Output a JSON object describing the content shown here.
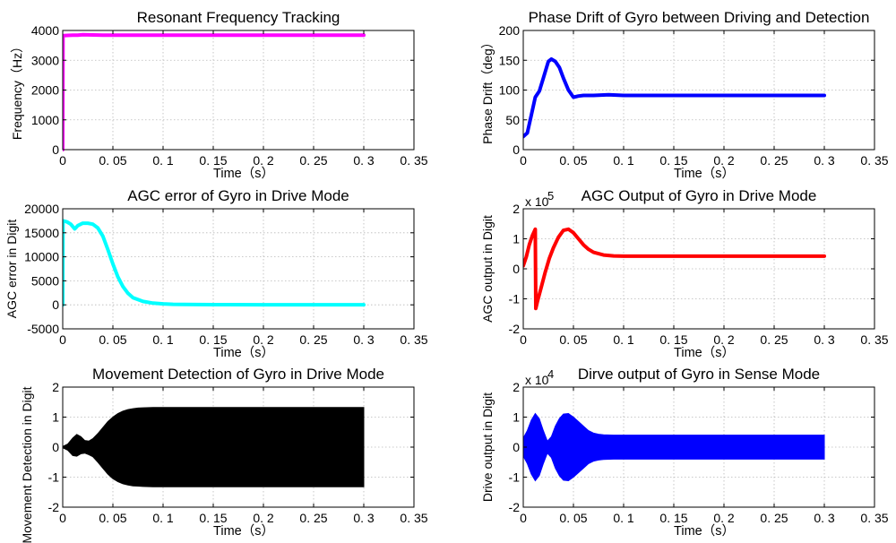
{
  "chart_data": [
    {
      "type": "line",
      "title": "Resonant Frequency Tracking",
      "xlabel": "Time（s）",
      "ylabel": "Frequency（Hz）",
      "xlim": [
        0,
        0.35
      ],
      "ylim": [
        0,
        4000
      ],
      "xticks": [
        0,
        0.05,
        0.1,
        0.15,
        0.2,
        0.25,
        0.3,
        0.35
      ],
      "xtick_labels": [
        "0",
        "0. 05",
        "0. 1",
        "0. 15",
        "0. 2",
        "0. 25",
        "0. 3",
        "0. 35"
      ],
      "yticks": [
        0,
        1000,
        2000,
        3000,
        4000
      ],
      "ytick_labels": [
        "0",
        "1000",
        "2000",
        "3000",
        "4000"
      ],
      "grid": true,
      "color": "#ff00ff",
      "series": [
        {
          "x": [
            0,
            0.0003,
            0.001,
            0.005,
            0.01,
            0.015,
            0.02,
            0.03,
            0.04,
            0.05,
            0.1,
            0.2,
            0.3
          ],
          "y": [
            0,
            3800,
            3830,
            3835,
            3840,
            3845,
            3860,
            3850,
            3840,
            3845,
            3845,
            3845,
            3845
          ]
        }
      ]
    },
    {
      "type": "line",
      "title": "Phase Drift of Gyro between Driving and Detection",
      "xlabel": "Time（s）",
      "ylabel": "Phase Drift（deg）",
      "xlim": [
        0,
        0.35
      ],
      "ylim": [
        0,
        200
      ],
      "xticks": [
        0,
        0.05,
        0.1,
        0.15,
        0.2,
        0.25,
        0.3,
        0.35
      ],
      "xtick_labels": [
        "0",
        "0. 05",
        "0. 1",
        "0. 15",
        "0. 2",
        "0. 25",
        "0. 3",
        "0. 35"
      ],
      "yticks": [
        0,
        50,
        100,
        150,
        200
      ],
      "ytick_labels": [
        "0",
        "50",
        "100",
        "150",
        "200"
      ],
      "grid": true,
      "color": "#0000ff",
      "series": [
        {
          "x": [
            0,
            0.004,
            0.008,
            0.012,
            0.016,
            0.02,
            0.025,
            0.028,
            0.032,
            0.036,
            0.04,
            0.045,
            0.05,
            0.055,
            0.06,
            0.07,
            0.085,
            0.1,
            0.2,
            0.3
          ],
          "y": [
            22,
            28,
            58,
            88,
            98,
            120,
            148,
            152,
            148,
            138,
            120,
            100,
            88,
            90,
            91,
            91,
            92,
            91,
            91,
            91
          ]
        }
      ]
    },
    {
      "type": "line",
      "title": "AGC error of Gyro in Drive Mode",
      "xlabel": "Time（s）",
      "ylabel": "AGC error in Digit",
      "xlim": [
        0,
        0.35
      ],
      "ylim": [
        -5000,
        20000
      ],
      "xticks": [
        0,
        0.05,
        0.1,
        0.15,
        0.2,
        0.25,
        0.3,
        0.35
      ],
      "xtick_labels": [
        "0",
        "0. 05",
        "0. 1",
        "0. 15",
        "0. 2",
        "0. 25",
        "0. 3",
        "0. 35"
      ],
      "yticks": [
        -5000,
        0,
        5000,
        10000,
        15000,
        20000
      ],
      "ytick_labels": [
        "-5000",
        "0",
        "5000",
        "10000",
        "15000",
        "20000"
      ],
      "grid": true,
      "color": "#00ffff",
      "series": [
        {
          "x": [
            0,
            0.0003,
            0.004,
            0.008,
            0.012,
            0.015,
            0.02,
            0.025,
            0.03,
            0.035,
            0.04,
            0.045,
            0.05,
            0.055,
            0.06,
            0.065,
            0.07,
            0.08,
            0.09,
            0.1,
            0.11,
            0.12,
            0.15,
            0.2,
            0.3
          ],
          "y": [
            0,
            17500,
            17300,
            16800,
            15800,
            16500,
            17000,
            17000,
            16800,
            16000,
            14300,
            11500,
            8500,
            5800,
            3800,
            2400,
            1500,
            700,
            350,
            200,
            120,
            80,
            40,
            20,
            10
          ]
        }
      ]
    },
    {
      "type": "line",
      "title": "AGC Output of Gyro in Drive Mode",
      "xlabel": "Time（s）",
      "ylabel": "AGC output in Digit",
      "y_multiplier": "x 10",
      "y_exponent": "5",
      "xlim": [
        0,
        0.35
      ],
      "ylim": [
        -2,
        2
      ],
      "xticks": [
        0,
        0.05,
        0.1,
        0.15,
        0.2,
        0.25,
        0.3,
        0.35
      ],
      "xtick_labels": [
        "0",
        "0. 05",
        "0. 1",
        "0. 15",
        "0. 2",
        "0. 25",
        "0. 3",
        "0. 35"
      ],
      "yticks": [
        -2,
        -1,
        0,
        1,
        2
      ],
      "ytick_labels": [
        "-2",
        "-1",
        "0",
        "1",
        "2"
      ],
      "grid": true,
      "color": "#ff0000",
      "series": [
        {
          "x": [
            0,
            0.003,
            0.006,
            0.009,
            0.012,
            0.0125,
            0.014,
            0.018,
            0.022,
            0.026,
            0.03,
            0.035,
            0.04,
            0.045,
            0.05,
            0.055,
            0.06,
            0.065,
            0.07,
            0.08,
            0.09,
            0.1,
            0.2,
            0.3
          ],
          "y": [
            0.1,
            0.4,
            0.8,
            1.1,
            1.32,
            -1.32,
            -1.1,
            -0.6,
            -0.1,
            0.35,
            0.7,
            1.05,
            1.28,
            1.32,
            1.2,
            1.0,
            0.8,
            0.65,
            0.55,
            0.46,
            0.43,
            0.42,
            0.42,
            0.42
          ]
        }
      ]
    },
    {
      "type": "area",
      "title": "Movement Detection of Gyro in Drive Mode",
      "xlabel": "Time（s）",
      "ylabel": "Movement Detection in Digit",
      "xlim": [
        0,
        0.35
      ],
      "ylim": [
        -2,
        2
      ],
      "xticks": [
        0,
        0.05,
        0.1,
        0.15,
        0.2,
        0.25,
        0.3,
        0.35
      ],
      "xtick_labels": [
        "0",
        "0. 05",
        "0. 1",
        "0. 15",
        "0. 2",
        "0. 25",
        "0. 3",
        "0. 35"
      ],
      "yticks": [
        -2,
        -1,
        0,
        1,
        2
      ],
      "ytick_labels": [
        "-2",
        "-1",
        "0",
        "1",
        "2"
      ],
      "grid": true,
      "color": "#000000",
      "series": [
        {
          "x": [
            0,
            0.005,
            0.01,
            0.014,
            0.018,
            0.022,
            0.026,
            0.03,
            0.035,
            0.04,
            0.045,
            0.05,
            0.055,
            0.06,
            0.065,
            0.07,
            0.075,
            0.08,
            0.09,
            0.1,
            0.11,
            0.2,
            0.3
          ],
          "upper": [
            0.02,
            0.1,
            0.3,
            0.42,
            0.35,
            0.22,
            0.2,
            0.28,
            0.45,
            0.65,
            0.85,
            1.0,
            1.12,
            1.2,
            1.25,
            1.28,
            1.3,
            1.31,
            1.32,
            1.32,
            1.32,
            1.32,
            1.32
          ],
          "lower": [
            -0.02,
            -0.1,
            -0.28,
            -0.3,
            -0.22,
            -0.2,
            -0.25,
            -0.32,
            -0.5,
            -0.7,
            -0.9,
            -1.05,
            -1.15,
            -1.22,
            -1.26,
            -1.29,
            -1.3,
            -1.31,
            -1.32,
            -1.32,
            -1.32,
            -1.32,
            -1.32
          ]
        }
      ]
    },
    {
      "type": "area",
      "title": "Dirve output of Gyro in Sense Mode",
      "xlabel": "Time（s）",
      "ylabel": "Drive output in Digit",
      "y_multiplier": "x 10",
      "y_exponent": "4",
      "xlim": [
        0,
        0.35
      ],
      "ylim": [
        -2,
        2
      ],
      "xticks": [
        0,
        0.05,
        0.1,
        0.15,
        0.2,
        0.25,
        0.3,
        0.35
      ],
      "xtick_labels": [
        "0",
        "0. 05",
        "0. 1",
        "0. 15",
        "0. 2",
        "0. 25",
        "0. 3",
        "0. 35"
      ],
      "yticks": [
        -2,
        -1,
        0,
        1,
        2
      ],
      "ytick_labels": [
        "-2",
        "-1",
        "0",
        "1",
        "2"
      ],
      "grid": true,
      "color": "#0000ff",
      "series": [
        {
          "x": [
            0,
            0.004,
            0.008,
            0.012,
            0.016,
            0.02,
            0.024,
            0.028,
            0.032,
            0.036,
            0.04,
            0.045,
            0.05,
            0.055,
            0.06,
            0.065,
            0.07,
            0.075,
            0.08,
            0.09,
            0.1,
            0.2,
            0.3
          ],
          "upper": [
            0.3,
            0.55,
            0.9,
            1.12,
            0.95,
            0.55,
            0.2,
            0.35,
            0.7,
            0.95,
            1.1,
            1.12,
            1.0,
            0.85,
            0.7,
            0.55,
            0.47,
            0.43,
            0.41,
            0.4,
            0.4,
            0.4,
            0.4
          ],
          "lower": [
            -0.3,
            -0.55,
            -0.9,
            -1.12,
            -0.95,
            -0.55,
            -0.2,
            -0.35,
            -0.7,
            -0.95,
            -1.1,
            -1.12,
            -1.0,
            -0.85,
            -0.7,
            -0.55,
            -0.47,
            -0.43,
            -0.41,
            -0.4,
            -0.4,
            -0.4,
            -0.4
          ]
        }
      ]
    }
  ]
}
